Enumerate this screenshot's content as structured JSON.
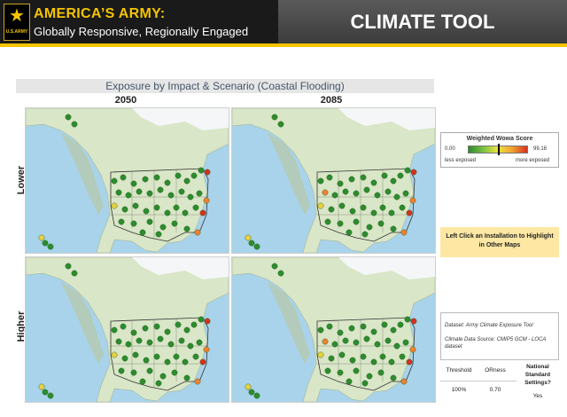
{
  "header": {
    "logo_text": "U.S.ARMY",
    "brand_title": "AMERICA’S ARMY:",
    "brand_subtitle": "Globally Responsive, Regionally Engaged",
    "tool_title": "CLIMATE TOOL"
  },
  "chart": {
    "title": "Exposure by Impact & Scenario (Coastal Flooding)",
    "columns": [
      "2050",
      "2085"
    ],
    "rows": [
      "Lower",
      "Higher"
    ]
  },
  "legend": {
    "title": "Weighted Wowa Score",
    "min": "0.00",
    "max": "99.18",
    "low_label": "less exposed",
    "high_label": "more exposed",
    "colors": [
      "#2e8b2e",
      "#7bc043",
      "#f0e442",
      "#f0a030",
      "#d7301f"
    ]
  },
  "hint": "Left Click an Installation to Highlight in Other Maps",
  "info": {
    "dataset": "Dataset: Army Climate Exposure Tool",
    "source": "Climate Data Source: CMIP5 GCM - LOCA dataset"
  },
  "settings": {
    "headers": [
      "Threshold",
      "ORness",
      "National Standard Settings?"
    ],
    "values": [
      "100%",
      "0.70",
      "Yes"
    ]
  },
  "map_colors": {
    "ocean": "#a9d3ea",
    "land": "#d9e6c7",
    "mountain": "#b8c7a5",
    "ice": "#f4f6f7",
    "border": "#333333",
    "dot_green": "#2e8b2e",
    "dot_orange": "#f08030",
    "dot_red": "#d7301f",
    "dot_yellow": "#e8d040"
  }
}
